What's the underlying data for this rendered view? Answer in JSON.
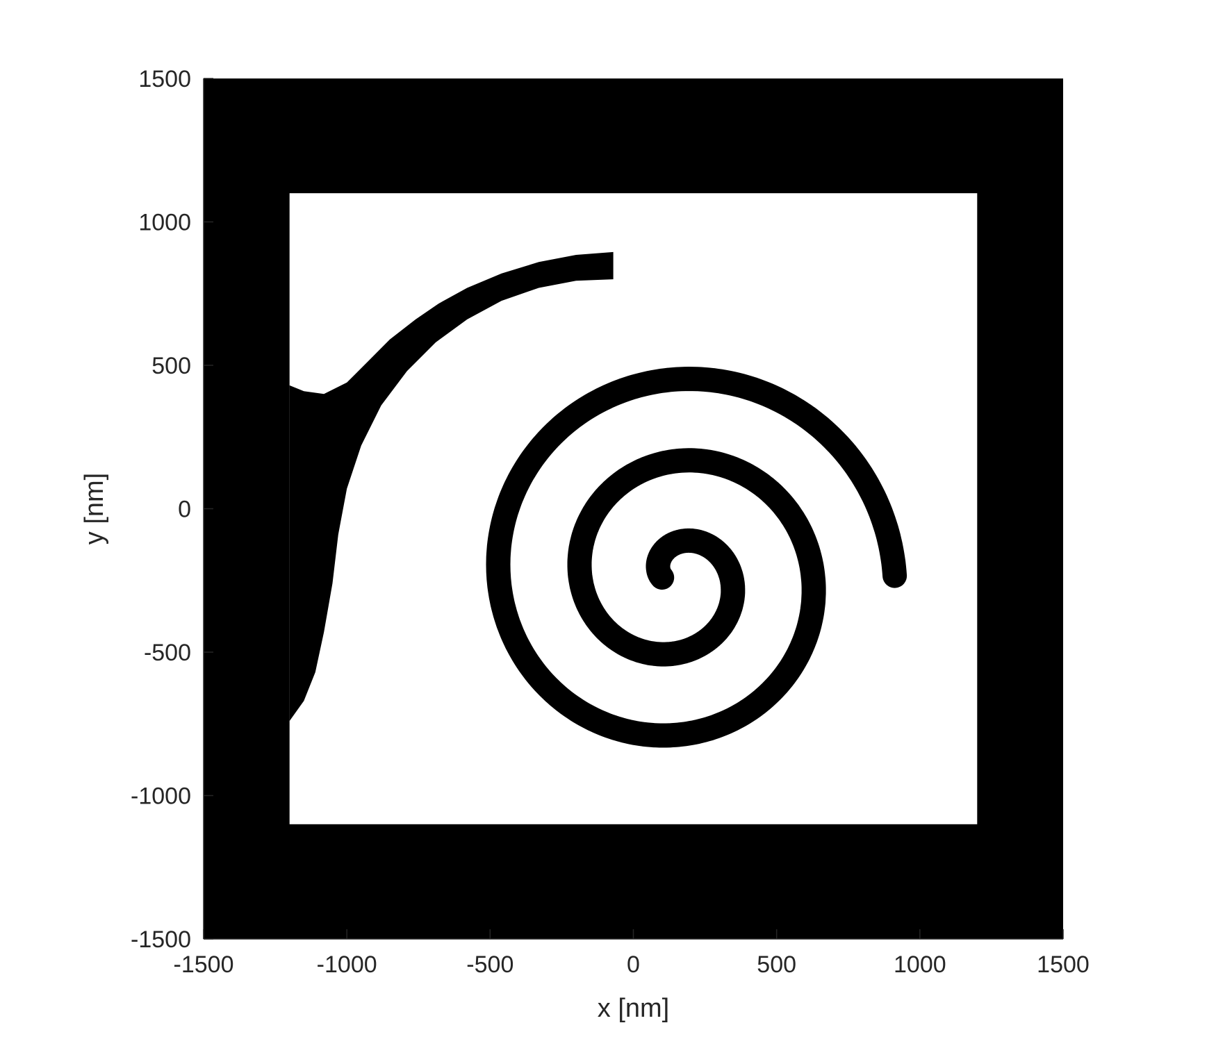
{
  "chart_data": {
    "type": "heatmap",
    "title": "",
    "xlabel": "x [nm]",
    "ylabel": "y [nm]",
    "xlim": [
      -1500,
      1500
    ],
    "ylim": [
      -1500,
      1500
    ],
    "x_ticks": [
      -1500,
      -1000,
      -500,
      0,
      500,
      1000,
      1500
    ],
    "y_ticks": [
      -1500,
      -1000,
      -500,
      0,
      500,
      1000,
      1500
    ],
    "x_tick_labels": [
      "-1500",
      "-1000",
      "-500",
      "0",
      "500",
      "1000",
      "1500"
    ],
    "y_tick_labels": [
      "-1500",
      "-1000",
      "-500",
      "0",
      "500",
      "1000",
      "1500"
    ],
    "grid": false,
    "legend": "none",
    "colormap": "binary",
    "colors": {
      "material": "#000000",
      "void": "#ffffff",
      "text": "#262626"
    },
    "geometry": {
      "background_material": "material",
      "void_window": {
        "x": [
          -1200,
          1200
        ],
        "y": [
          -1100,
          1100
        ]
      },
      "left_inlet_opening_y": [
        -740,
        430
      ],
      "spiral": {
        "center": [
          150,
          -240
        ],
        "start_angle_deg": 180,
        "start_radius": 50,
        "growth_per_turn": 285,
        "turns": 2.5,
        "width": 85
      }
    }
  }
}
